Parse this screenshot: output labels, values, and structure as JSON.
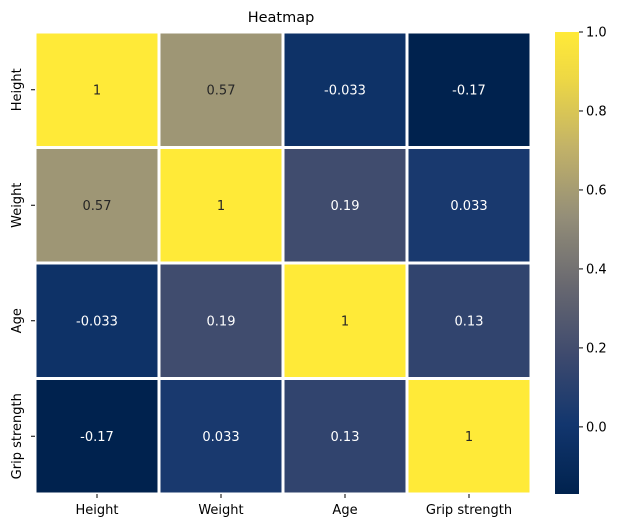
{
  "chart_data": {
    "type": "heatmap",
    "title": "Heatmap",
    "x_categories": [
      "Height",
      "Weight",
      "Age",
      "Grip strength"
    ],
    "y_categories": [
      "Height",
      "Weight",
      "Age",
      "Grip strength"
    ],
    "values": [
      [
        1,
        0.57,
        -0.033,
        -0.17
      ],
      [
        0.57,
        1,
        0.19,
        0.033
      ],
      [
        -0.033,
        0.19,
        1,
        0.13
      ],
      [
        -0.17,
        0.033,
        0.13,
        1
      ]
    ],
    "cell_labels": [
      [
        "1",
        "0.57",
        "-0.033",
        "-0.17"
      ],
      [
        "0.57",
        "1",
        "0.19",
        "0.033"
      ],
      [
        "-0.033",
        "0.19",
        "1",
        "0.13"
      ],
      [
        "-0.17",
        "0.033",
        "0.13",
        "1"
      ]
    ],
    "colormap": "cividis",
    "vmin": -0.17,
    "vmax": 1,
    "colorbar_ticks": [
      0.0,
      0.2,
      0.4,
      0.6,
      0.8,
      1.0
    ],
    "colorbar_tick_labels": [
      "0.0",
      "0.2",
      "0.4",
      "0.6",
      "0.8",
      "1.0"
    ],
    "cell_border_color": "#ffffff"
  }
}
